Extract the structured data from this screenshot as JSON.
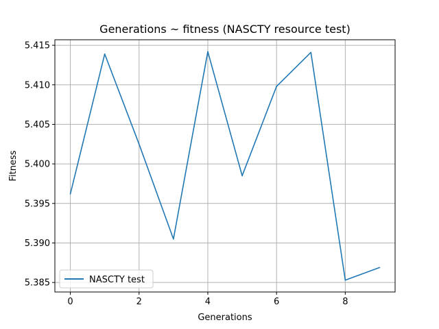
{
  "chart_data": {
    "type": "line",
    "title": "Generations ~ fitness (NASCTY resource test)",
    "xlabel": "Generations",
    "ylabel": "Fitness",
    "xlim": [
      -0.45,
      9.45
    ],
    "ylim": [
      5.3838,
      5.4157
    ],
    "xticks": [
      0,
      2,
      4,
      6,
      8
    ],
    "yticks": [
      5.385,
      5.39,
      5.395,
      5.4,
      5.405,
      5.41,
      5.415
    ],
    "xtick_labels": [
      "0",
      "2",
      "4",
      "6",
      "8"
    ],
    "ytick_labels": [
      "5.385",
      "5.390",
      "5.395",
      "5.400",
      "5.405",
      "5.410",
      "5.415"
    ],
    "grid": true,
    "legend_position": "lower-left",
    "series": [
      {
        "name": "NASCTY test",
        "color": "#1f77b4",
        "x": [
          0,
          1,
          2,
          3,
          4,
          5,
          6,
          7,
          8,
          9
        ],
        "y": [
          5.3962,
          5.4139,
          5.4025,
          5.3905,
          5.4142,
          5.3985,
          5.4098,
          5.4141,
          5.3853,
          5.3869
        ]
      }
    ]
  }
}
